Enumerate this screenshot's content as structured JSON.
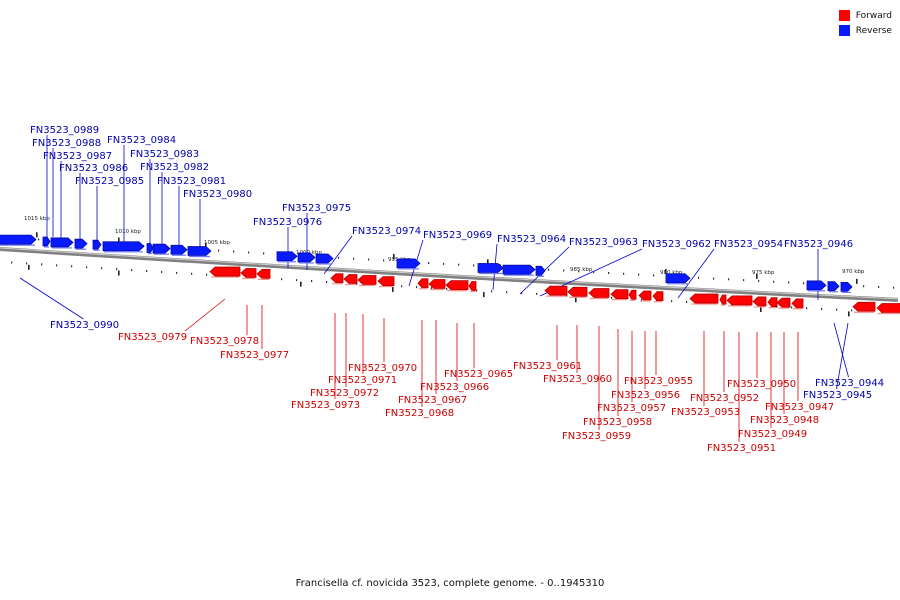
{
  "legend": {
    "forward_label": "Forward",
    "reverse_label": "Reverse",
    "forward_color": "#ff0000",
    "reverse_color": "#0a1aff"
  },
  "colors": {
    "forward": "#ff0000",
    "forward_dark": "#b30000",
    "reverse": "#0a1aff",
    "reverse_dark": "#000c9e",
    "backbone": "#808080",
    "label_forward": "#cc0000",
    "label_reverse": "#0000aa"
  },
  "caption": "Francisella cf. novicida 3523, complete genome. - 0..1945310",
  "scale_labels": [
    "1015 kbp",
    "1010 kbp",
    "1005 kbp",
    "1000 kbp",
    "995 kbp",
    "990 kbp",
    "985 kbp",
    "980 kbp",
    "975 kbp",
    "970 kbp"
  ],
  "genes": {
    "reverse": [
      "FN3523_0990",
      "FN3523_0989",
      "FN3523_0988",
      "FN3523_0987",
      "FN3523_0986",
      "FN3523_0985",
      "FN3523_0984",
      "FN3523_0983",
      "FN3523_0982",
      "FN3523_0981",
      "FN3523_0980",
      "FN3523_0976",
      "FN3523_0975",
      "FN3523_0974",
      "FN3523_0969",
      "FN3523_0964",
      "FN3523_0963",
      "FN3523_0962",
      "FN3523_0954",
      "FN3523_0946",
      "FN3523_0945",
      "FN3523_0944"
    ],
    "forward": [
      "FN3523_0979",
      "FN3523_0978",
      "FN3523_0977",
      "FN3523_0973",
      "FN3523_0972",
      "FN3523_0971",
      "FN3523_0970",
      "FN3523_0968",
      "FN3523_0967",
      "FN3523_0966",
      "FN3523_0965",
      "FN3523_0961",
      "FN3523_0960",
      "FN3523_0959",
      "FN3523_0958",
      "FN3523_0957",
      "FN3523_0956",
      "FN3523_0955",
      "FN3523_0953",
      "FN3523_0952",
      "FN3523_0951",
      "FN3523_0950",
      "FN3523_0949",
      "FN3523_0948",
      "FN3523_0947"
    ]
  }
}
